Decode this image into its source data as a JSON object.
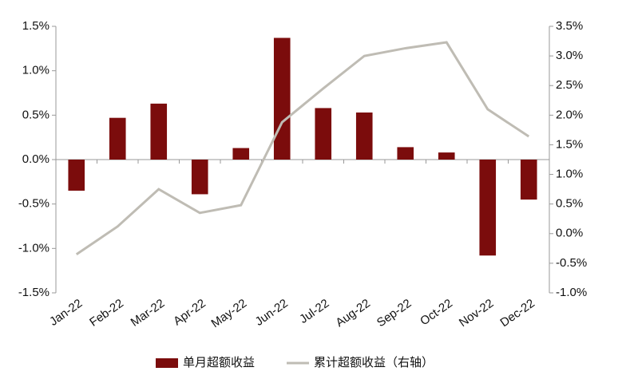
{
  "chart_data": {
    "type": "bar-line",
    "categories": [
      "Jan-22",
      "Feb-22",
      "Mar-22",
      "Apr-22",
      "May-22",
      "Jun-22",
      "Jul-22",
      "Aug-22",
      "Sep-22",
      "Oct-22",
      "Nov-22",
      "Dec-22"
    ],
    "series": [
      {
        "name": "单月超额收益",
        "type": "bar",
        "color": "#7b0c0c",
        "values": [
          -0.35,
          0.47,
          0.63,
          -0.39,
          0.13,
          1.37,
          0.58,
          0.53,
          0.14,
          0.08,
          -1.08,
          -0.45
        ]
      },
      {
        "name": "累计超额收益（右轴）",
        "type": "line",
        "axis": "y2",
        "color": "#bfbcb4",
        "values": [
          -0.35,
          0.12,
          0.75,
          0.35,
          0.48,
          1.88,
          2.45,
          3.0,
          3.13,
          3.23,
          2.1,
          1.64
        ]
      }
    ],
    "ylim": [
      -1.5,
      1.5
    ],
    "yticks": [
      {
        "value": -1.5,
        "label": "-1.5%"
      },
      {
        "value": -1.0,
        "label": "-1.0%"
      },
      {
        "value": -0.5,
        "label": "-0.5%"
      },
      {
        "value": 0.0,
        "label": "0.0%"
      },
      {
        "value": 0.5,
        "label": "0.5%"
      },
      {
        "value": 1.0,
        "label": "1.0%"
      },
      {
        "value": 1.5,
        "label": "1.5%"
      }
    ],
    "y2lim": [
      -1.0,
      3.5
    ],
    "y2ticks": [
      {
        "value": -1.0,
        "label": "-1.0%"
      },
      {
        "value": -0.5,
        "label": "-0.5%"
      },
      {
        "value": 0.0,
        "label": "0.0%"
      },
      {
        "value": 0.5,
        "label": "0.5%"
      },
      {
        "value": 1.0,
        "label": "1.0%"
      },
      {
        "value": 1.5,
        "label": "1.5%"
      },
      {
        "value": 2.0,
        "label": "2.0%"
      },
      {
        "value": 2.5,
        "label": "2.5%"
      },
      {
        "value": 3.0,
        "label": "3.0%"
      },
      {
        "value": 3.5,
        "label": "3.5%"
      }
    ],
    "grid": false,
    "legend": "bottom"
  }
}
